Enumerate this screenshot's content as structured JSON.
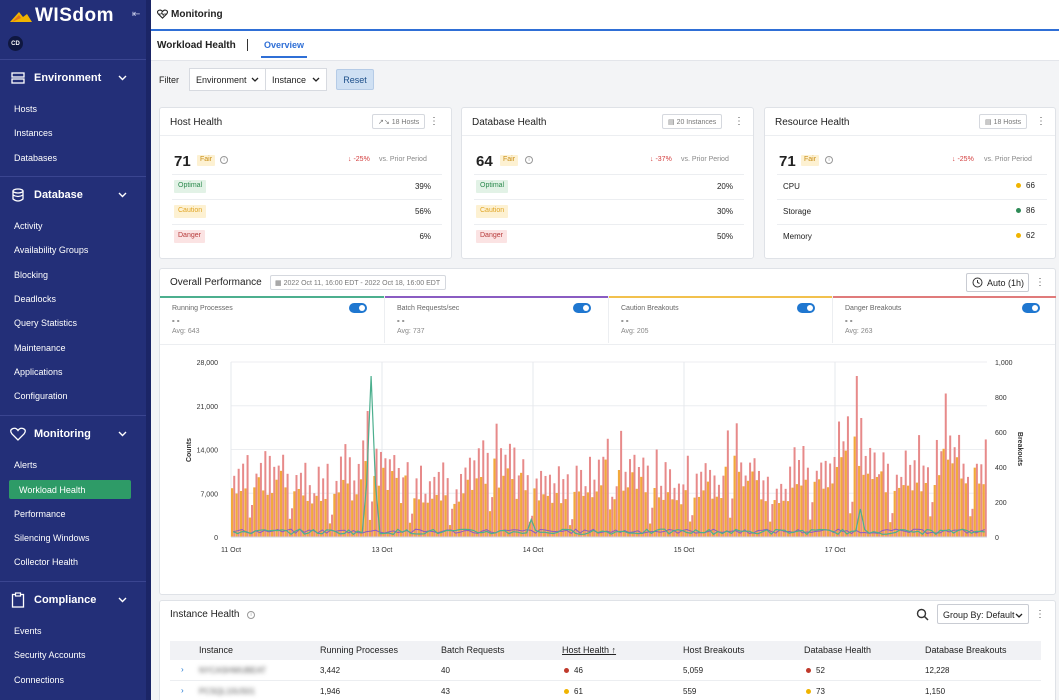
{
  "sidebar": {
    "brand": "WISdom",
    "user_initials": "CD",
    "sections": [
      {
        "label": "Environment",
        "items": [
          "Hosts",
          "Instances",
          "Databases"
        ]
      },
      {
        "label": "Database",
        "items": [
          "Activity",
          "Availability Groups",
          "Blocking",
          "Deadlocks",
          "Query Statistics",
          "Maintenance",
          "Applications",
          "Configuration"
        ]
      },
      {
        "label": "Monitoring",
        "items": [
          "Alerts",
          "Workload Health",
          "Performance",
          "Silencing Windows",
          "Collector Health"
        ]
      },
      {
        "label": "Compliance",
        "items": [
          "Events",
          "Security Accounts",
          "Connections"
        ]
      }
    ],
    "active_item": "Workload Health"
  },
  "header": {
    "title": "Monitoring"
  },
  "tabs": {
    "page": "Workload Health",
    "active_tab": "Overview"
  },
  "filter": {
    "label": "Filter",
    "environment": "Environment",
    "instance": "Instance",
    "reset": "Reset"
  },
  "host_health": {
    "title": "Host Health",
    "count": "18 Hosts",
    "score": "71",
    "status": "Fair",
    "delta": "-25%",
    "prior": "vs. Prior Period",
    "rows": [
      {
        "label": "Optimal",
        "value": "39%"
      },
      {
        "label": "Caution",
        "value": "56%"
      },
      {
        "label": "Danger",
        "value": "6%"
      }
    ]
  },
  "database_health": {
    "title": "Database Health",
    "count": "20 Instances",
    "score": "64",
    "status": "Fair",
    "delta": "-37%",
    "prior": "vs. Prior Period",
    "rows": [
      {
        "label": "Optimal",
        "value": "20%"
      },
      {
        "label": "Caution",
        "value": "30%"
      },
      {
        "label": "Danger",
        "value": "50%"
      }
    ]
  },
  "resource_health": {
    "title": "Resource Health",
    "count": "18 Hosts",
    "score": "71",
    "status": "Fair",
    "delta": "-25%",
    "prior": "vs. Prior Period",
    "rows": [
      {
        "label": "CPU",
        "value": "66",
        "color": "#f0b400"
      },
      {
        "label": "Storage",
        "value": "86",
        "color": "#2e8b57"
      },
      {
        "label": "Memory",
        "value": "62",
        "color": "#f0b400"
      }
    ]
  },
  "performance": {
    "title": "Overall Performance",
    "date_range": "2022 Oct 11, 16:00 EDT - 2022 Oct 18, 16:00 EDT",
    "auto": "Auto (1h)",
    "metrics": [
      {
        "name": "Running Processes",
        "value": "- -",
        "avg": "Avg: 643",
        "color": "#4caf8e"
      },
      {
        "name": "Batch Requests/sec",
        "value": "- -",
        "avg": "Avg: 737",
        "color": "#8a5cc2"
      },
      {
        "name": "Caution Breakouts",
        "value": "- -",
        "avg": "Avg: 205",
        "color": "#f2c14e"
      },
      {
        "name": "Danger Breakouts",
        "value": "- -",
        "avg": "Avg: 263",
        "color": "#e07b7b"
      }
    ],
    "chart_data": {
      "type": "bar",
      "ylabel": "Counts",
      "y2label": "Breakouts",
      "ylim": [
        0,
        28000
      ],
      "y2lim": [
        0,
        1000
      ],
      "y_ticks": [
        "0",
        "7,000",
        "14,000",
        "21,000",
        "28,000"
      ],
      "y2_ticks": [
        "0",
        "200",
        "400",
        "600",
        "800",
        "1,000"
      ],
      "x_ticks": [
        "11 Oct",
        "13 Oct",
        "14 Oct",
        "15 Oct",
        "17 Oct"
      ],
      "series": [
        {
          "name": "Running Processes",
          "type": "line",
          "color": "#4caf8e"
        },
        {
          "name": "Batch Requests/sec",
          "type": "line",
          "color": "#8a5cc2"
        },
        {
          "name": "Caution Breakouts",
          "type": "bar",
          "color": "#f2a93b"
        },
        {
          "name": "Danger Breakouts",
          "type": "bar",
          "color": "#e07b7b"
        }
      ]
    }
  },
  "instance_health": {
    "title": "Instance Health",
    "group_by": "Group By: Default",
    "columns": [
      "Instance",
      "Running Processes",
      "Batch Requests",
      "Host Health",
      "Host Breakouts",
      "Database Health",
      "Database Breakouts"
    ],
    "rows": [
      {
        "instance": "NYCASHWUBEAT",
        "running": "3,442",
        "batch": "40",
        "host_health": "46",
        "host_color": "#c0392b",
        "host_breakouts": "5,059",
        "db_health": "52",
        "db_color": "#c0392b",
        "db_breakouts": "12,228"
      },
      {
        "instance": "PCSQL10US01",
        "running": "1,946",
        "batch": "43",
        "host_health": "61",
        "host_color": "#f0b400",
        "host_breakouts": "559",
        "db_health": "73",
        "db_color": "#f0b400",
        "db_breakouts": "1,150"
      }
    ]
  }
}
